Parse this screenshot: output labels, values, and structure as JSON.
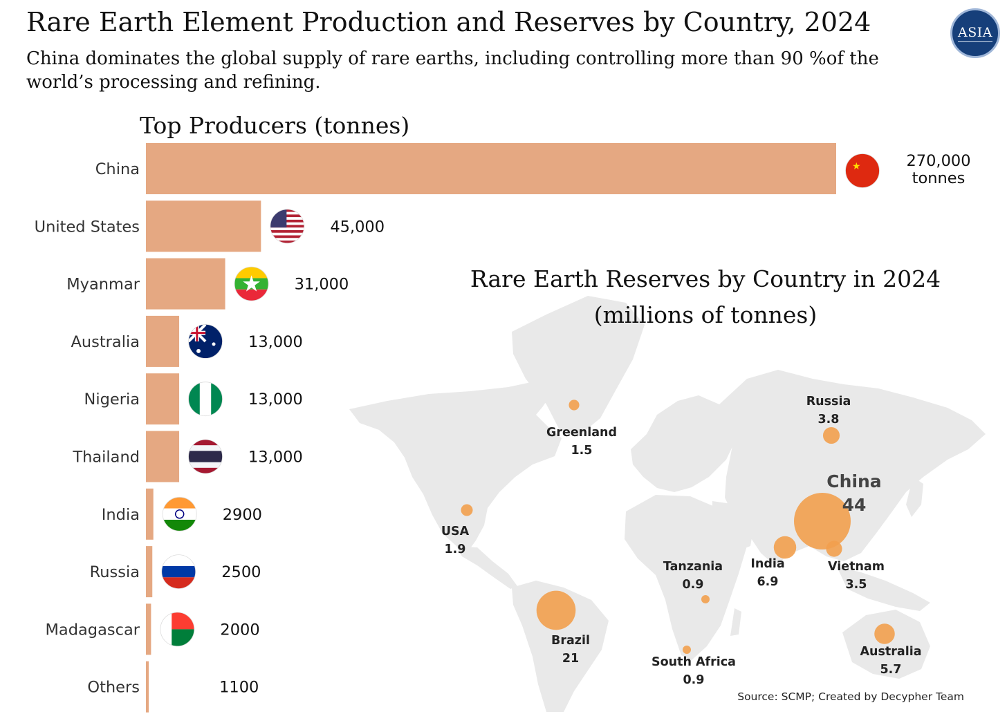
{
  "header": {
    "title": "Rare Earth Element Production and Reserves by Country, 2024",
    "subtitle": "China dominates the global supply of rare earths, including controlling more than 90 %of the world’s processing and refining.",
    "logo_text": "ASIA"
  },
  "colors": {
    "bar": "#e5a882",
    "bubble": "#f2a04e",
    "land": "#e9e9e9",
    "text": "#111111"
  },
  "chart_data": [
    {
      "type": "bar",
      "orientation": "horizontal",
      "title": "Top Producers (tonnes)",
      "categories": [
        "China",
        "United States",
        "Myanmar",
        "Australia",
        "Nigeria",
        "Thailand",
        "India",
        "Russia",
        "Madagascar",
        "Others"
      ],
      "values": [
        270000,
        45000,
        31000,
        13000,
        13000,
        13000,
        2900,
        2500,
        2000,
        1100
      ],
      "value_labels": [
        "270,000\ntonnes",
        "45,000",
        "31,000",
        "13,000",
        "13,000",
        "13,000",
        "2900",
        "2500",
        "2000",
        "1100"
      ],
      "flag_icons": [
        "china-flag-icon",
        "usa-flag-icon",
        "myanmar-flag-icon",
        "australia-flag-icon",
        "nigeria-flag-icon",
        "thailand-flag-icon",
        "india-flag-icon",
        "russia-flag-icon",
        "madagascar-flag-icon",
        null
      ],
      "xlim": [
        0,
        270000
      ]
    },
    {
      "type": "scatter",
      "subtype": "bubble map",
      "title": "Rare Earth Reserves by Country in 2024\n(millions of tonnes)",
      "points": [
        {
          "country": "China",
          "value": 44,
          "value_label": "44"
        },
        {
          "country": "Brazil",
          "value": 21,
          "value_label": "21"
        },
        {
          "country": "India",
          "value": 6.9,
          "value_label": "6.9"
        },
        {
          "country": "Australia",
          "value": 5.7,
          "value_label": "5.7"
        },
        {
          "country": "Russia",
          "value": 3.8,
          "value_label": "3.8"
        },
        {
          "country": "Vietnam",
          "value": 3.5,
          "value_label": "3.5"
        },
        {
          "country": "USA",
          "value": 1.9,
          "value_label": "1.9"
        },
        {
          "country": "Greenland",
          "value": 1.5,
          "value_label": "1.5"
        },
        {
          "country": "Tanzania",
          "value": 0.9,
          "value_label": "0.9"
        },
        {
          "country": "South Africa",
          "value": 0.9,
          "value_label": "0.9"
        }
      ],
      "map": "world"
    }
  ],
  "footer": {
    "source": "Source: SCMP; Created by Decypher Team"
  }
}
